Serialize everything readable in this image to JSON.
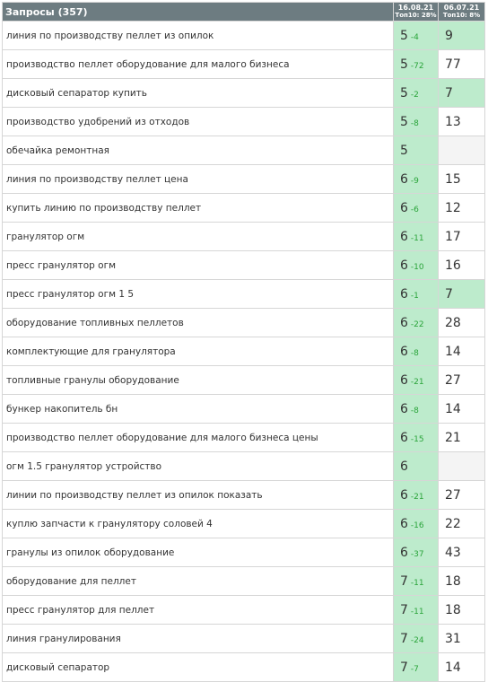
{
  "header": {
    "title": "Запросы (357)",
    "columns": [
      {
        "date": "16.08.21",
        "top": "Топ10: 28%"
      },
      {
        "date": "06.07.21",
        "top": "Топ10: 8%"
      }
    ]
  },
  "rows": [
    {
      "query": "линия по производству пеллет из опилок",
      "pos": 5,
      "change": -4,
      "prev": 9
    },
    {
      "query": "производство пеллет оборудование для малого бизнеса",
      "pos": 5,
      "change": -72,
      "prev": 77
    },
    {
      "query": "дисковый сепаратор купить",
      "pos": 5,
      "change": -2,
      "prev": 7
    },
    {
      "query": "производство удобрений из отходов",
      "pos": 5,
      "change": -8,
      "prev": 13
    },
    {
      "query": "обечайка ремонтная",
      "pos": 5
    },
    {
      "query": "линия по производству пеллет цена",
      "pos": 6,
      "change": -9,
      "prev": 15
    },
    {
      "query": "купить линию по производству пеллет",
      "pos": 6,
      "change": -6,
      "prev": 12
    },
    {
      "query": "гранулятор огм",
      "pos": 6,
      "change": -11,
      "prev": 17
    },
    {
      "query": "пресс гранулятор огм",
      "pos": 6,
      "change": -10,
      "prev": 16
    },
    {
      "query": "пресс гранулятор огм 1 5",
      "pos": 6,
      "change": -1,
      "prev": 7
    },
    {
      "query": "оборудование топливных пеллетов",
      "pos": 6,
      "change": -22,
      "prev": 28
    },
    {
      "query": "комплектующие для гранулятора",
      "pos": 6,
      "change": -8,
      "prev": 14
    },
    {
      "query": "топливные гранулы оборудование",
      "pos": 6,
      "change": -21,
      "prev": 27
    },
    {
      "query": "бункер накопитель бн",
      "pos": 6,
      "change": -8,
      "prev": 14
    },
    {
      "query": "производство пеллет оборудование для малого бизнеса цены",
      "pos": 6,
      "change": -15,
      "prev": 21
    },
    {
      "query": "огм 1.5 гранулятор устройство",
      "pos": 6
    },
    {
      "query": "линии по производству пеллет из опилок показать",
      "pos": 6,
      "change": -21,
      "prev": 27
    },
    {
      "query": "куплю запчасти к гранулятору соловей 4",
      "pos": 6,
      "change": -16,
      "prev": 22
    },
    {
      "query": "гранулы из опилок оборудование",
      "pos": 6,
      "change": -37,
      "prev": 43
    },
    {
      "query": "оборудование для пеллет",
      "pos": 7,
      "change": -11,
      "prev": 18
    },
    {
      "query": "пресс гранулятор для пеллет",
      "pos": 7,
      "change": -11,
      "prev": 18
    },
    {
      "query": "линия гранулирования",
      "pos": 7,
      "change": -24,
      "prev": 31
    },
    {
      "query": "дисковый сепаратор",
      "pos": 7,
      "change": -7,
      "prev": 14
    }
  ]
}
